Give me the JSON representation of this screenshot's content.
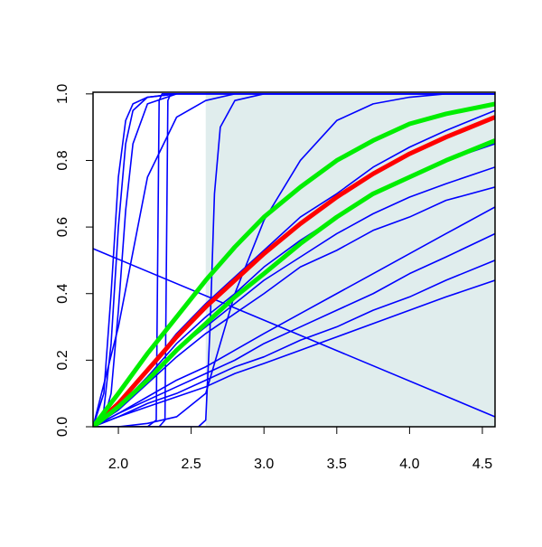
{
  "chart_data": {
    "type": "line",
    "xlim": [
      1.826,
      4.587
    ],
    "ylim": [
      0,
      1.005
    ],
    "xticks": [
      {
        "value": 2,
        "label": "2.0"
      },
      {
        "value": 2.5,
        "label": "2.5"
      },
      {
        "value": 3,
        "label": "3.0"
      },
      {
        "value": 3.5,
        "label": "3.5"
      },
      {
        "value": 4,
        "label": "4.0"
      },
      {
        "value": 4.5,
        "label": "4.5"
      }
    ],
    "yticks": [
      {
        "value": 0,
        "label": "0.0"
      },
      {
        "value": 0.2,
        "label": "0.2"
      },
      {
        "value": 0.4,
        "label": "0.4"
      },
      {
        "value": 0.6,
        "label": "0.6"
      },
      {
        "value": 0.8,
        "label": "0.8"
      },
      {
        "value": 1,
        "label": "1.0"
      }
    ],
    "shade_from": 2.6,
    "shade_color": "#e0eded",
    "line_width": 1.6,
    "series": [
      {
        "color": "#0000ff",
        "x": [
          1.826,
          2.0,
          2.2,
          2.4,
          2.6,
          2.8,
          3.0,
          3.25,
          3.5,
          3.75,
          4.0,
          4.25,
          4.587
        ],
        "values": [
          0,
          0.03,
          0.06,
          0.09,
          0.12,
          0.16,
          0.19,
          0.23,
          0.27,
          0.31,
          0.35,
          0.39,
          0.44
        ]
      },
      {
        "color": "#0000ff",
        "x": [
          1.826,
          2.0,
          2.2,
          2.4,
          2.6,
          2.8,
          3.0,
          3.25,
          3.5,
          3.75,
          4.0,
          4.25,
          4.587
        ],
        "values": [
          0,
          0.03,
          0.07,
          0.1,
          0.14,
          0.18,
          0.21,
          0.26,
          0.3,
          0.35,
          0.39,
          0.44,
          0.5
        ]
      },
      {
        "color": "#0000ff",
        "x": [
          1.826,
          2.0,
          2.2,
          2.4,
          2.6,
          2.8,
          3.0,
          3.25,
          3.5,
          3.75,
          4.0,
          4.25,
          4.587
        ],
        "values": [
          0,
          0.04,
          0.08,
          0.12,
          0.16,
          0.2,
          0.25,
          0.3,
          0.35,
          0.4,
          0.46,
          0.51,
          0.58
        ]
      },
      {
        "color": "#0000ff",
        "x": [
          1.826,
          2.0,
          2.2,
          2.4,
          2.6,
          2.8,
          3.0,
          3.25,
          3.5,
          3.75,
          4.0,
          4.25,
          4.587
        ],
        "values": [
          0,
          0.04,
          0.09,
          0.14,
          0.18,
          0.23,
          0.28,
          0.34,
          0.4,
          0.46,
          0.52,
          0.58,
          0.66
        ]
      },
      {
        "color": "#0000ff",
        "x": [
          1.826,
          2.0,
          2.2,
          2.4,
          2.6,
          2.8,
          3.0,
          3.25,
          3.5,
          3.75,
          4.0,
          4.25,
          4.587
        ],
        "values": [
          0,
          0.05,
          0.13,
          0.21,
          0.28,
          0.34,
          0.4,
          0.48,
          0.53,
          0.59,
          0.63,
          0.68,
          0.72
        ]
      },
      {
        "color": "#0000ff",
        "x": [
          1.826,
          2.0,
          2.2,
          2.4,
          2.6,
          2.8,
          3.0,
          3.25,
          3.5,
          3.75,
          4.0,
          4.25,
          4.587
        ],
        "values": [
          0,
          0.06,
          0.14,
          0.23,
          0.3,
          0.37,
          0.44,
          0.51,
          0.58,
          0.64,
          0.69,
          0.73,
          0.78
        ]
      },
      {
        "color": "#0000ff",
        "x": [
          1.826,
          2.0,
          2.2,
          2.4,
          2.6,
          2.8,
          3.0,
          3.25,
          3.5,
          3.75,
          4.0,
          4.25,
          4.587
        ],
        "values": [
          0,
          0.06,
          0.15,
          0.25,
          0.33,
          0.4,
          0.48,
          0.56,
          0.63,
          0.7,
          0.75,
          0.8,
          0.85
        ]
      },
      {
        "color": "#0000ff",
        "x": [
          1.826,
          2.0,
          2.2,
          2.4,
          2.6,
          2.8,
          3.0,
          3.25,
          3.5,
          3.75,
          4.0,
          4.25,
          4.587
        ],
        "values": [
          0,
          0.07,
          0.17,
          0.28,
          0.37,
          0.45,
          0.53,
          0.63,
          0.7,
          0.78,
          0.84,
          0.89,
          0.95
        ]
      },
      {
        "color": "#0000ff",
        "x": [
          1.826,
          2.55,
          2.6,
          2.63,
          2.66,
          2.7,
          2.8,
          3.0,
          4.587
        ],
        "values": [
          0,
          0,
          0.02,
          0.3,
          0.7,
          0.9,
          0.98,
          1,
          1
        ]
      },
      {
        "color": "#0000ff",
        "x": [
          1.826,
          2.0,
          2.2,
          2.4,
          2.6,
          2.8,
          3.0,
          3.25,
          3.5,
          3.75,
          4.0,
          4.25,
          4.587
        ],
        "values": [
          0,
          0,
          0.01,
          0.03,
          0.1,
          0.4,
          0.62,
          0.8,
          0.92,
          0.97,
          0.99,
          1,
          1
        ]
      },
      {
        "color": "#0000ff",
        "x": [
          1.826,
          1.9,
          1.95,
          2.0,
          2.05,
          2.1,
          2.2,
          2.4,
          4.587
        ],
        "values": [
          0,
          0.1,
          0.4,
          0.75,
          0.92,
          0.97,
          0.99,
          1,
          1
        ]
      },
      {
        "color": "#0000ff",
        "x": [
          1.826,
          1.9,
          1.95,
          2.0,
          2.05,
          2.1,
          2.2,
          2.4,
          4.587
        ],
        "values": [
          0,
          0.05,
          0.25,
          0.6,
          0.85,
          0.95,
          0.99,
          1,
          1
        ]
      },
      {
        "color": "#0000ff",
        "x": [
          1.826,
          1.9,
          1.95,
          2.0,
          2.05,
          2.1,
          2.2,
          2.4,
          4.587
        ],
        "values": [
          0,
          0.02,
          0.1,
          0.35,
          0.65,
          0.85,
          0.97,
          1,
          1
        ]
      },
      {
        "color": "#0000ff",
        "x": [
          1.826,
          2.2,
          2.26,
          2.28,
          2.3,
          4.587
        ],
        "values": [
          0,
          0,
          0.02,
          0.98,
          1,
          1
        ]
      },
      {
        "color": "#0000ff",
        "x": [
          1.826,
          2.28,
          2.32,
          2.34,
          2.36,
          4.587
        ],
        "values": [
          0,
          0,
          0.02,
          0.98,
          1,
          1
        ]
      },
      {
        "color": "#0000ff",
        "x": [
          1.826,
          2.0,
          2.2,
          2.4,
          2.6,
          2.8,
          3.0,
          3.25,
          3.5,
          3.75,
          4.0,
          4.25,
          4.587
        ],
        "values": [
          0,
          0.3,
          0.75,
          0.93,
          0.98,
          1,
          1,
          1,
          1,
          1,
          1,
          1,
          1
        ]
      },
      {
        "color": "#0000ff",
        "x": [
          1.826,
          4.587
        ],
        "values": [
          0.535,
          0.03
        ]
      },
      {
        "color": "#ff0000",
        "width": 5,
        "x": [
          1.826,
          2.0,
          2.2,
          2.4,
          2.6,
          2.8,
          3.0,
          3.25,
          3.5,
          3.75,
          4.0,
          4.25,
          4.587
        ],
        "values": [
          0,
          0.07,
          0.17,
          0.27,
          0.36,
          0.44,
          0.52,
          0.61,
          0.69,
          0.76,
          0.82,
          0.87,
          0.93
        ]
      },
      {
        "color": "#00ee00",
        "width": 5,
        "x": [
          1.826,
          2.0,
          2.2,
          2.4,
          2.6,
          2.8,
          3.0,
          3.25,
          3.5,
          3.75,
          4.0,
          4.25,
          4.587
        ],
        "values": [
          0,
          0.1,
          0.22,
          0.33,
          0.44,
          0.54,
          0.63,
          0.72,
          0.8,
          0.86,
          0.91,
          0.94,
          0.97
        ]
      },
      {
        "color": "#00ee00",
        "width": 5,
        "x": [
          1.826,
          2.0,
          2.2,
          2.4,
          2.6,
          2.8,
          3.0,
          3.25,
          3.5,
          3.75,
          4.0,
          4.25,
          4.587
        ],
        "values": [
          0,
          0.06,
          0.14,
          0.23,
          0.31,
          0.39,
          0.46,
          0.55,
          0.63,
          0.7,
          0.75,
          0.8,
          0.86
        ]
      }
    ]
  }
}
